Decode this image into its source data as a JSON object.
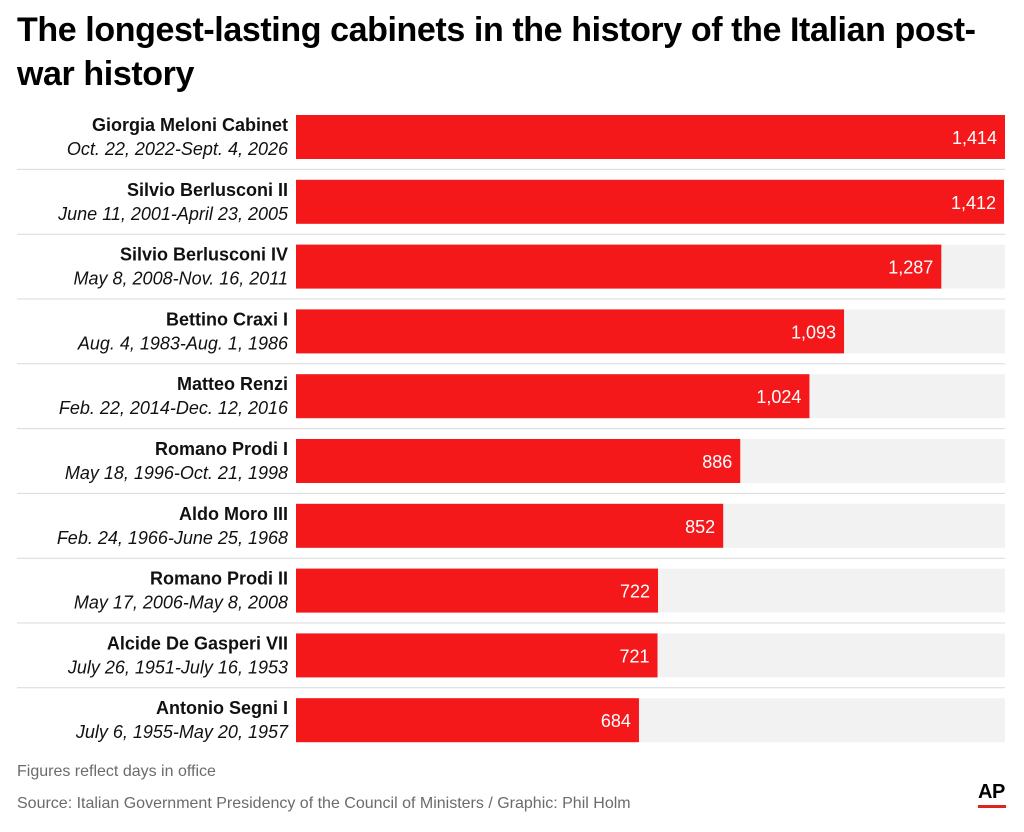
{
  "title": "The longest-lasting cabinets in the history of the Italian post-war history",
  "note": "Figures reflect days in office",
  "source": "Source: Italian Government Presidency of the Council of Ministers / Graphic: Phil Holm",
  "logo_text": "AP",
  "colors": {
    "bar": "#f5181b",
    "track": "#f2f2f2",
    "divider": "#d9d9d9",
    "logo_accent": "#e2231a"
  },
  "chart_data": {
    "type": "bar",
    "orientation": "horizontal",
    "value_unit": "days in office",
    "xlim": [
      0,
      1414
    ],
    "grid": false,
    "legend": "none",
    "categories": [
      "Giorgia Meloni Cabinet",
      "Silvio Berlusconi II",
      "Silvio Berlusconi IV",
      "Bettino Craxi I",
      "Matteo Renzi",
      "Romano Prodi I",
      "Aldo Moro III",
      "Romano Prodi II",
      "Alcide De Gasperi VII",
      "Antonio Segni I"
    ],
    "subtitles": [
      "Oct. 22, 2022-Sept. 4, 2026",
      "June 11, 2001-April 23, 2005",
      "May 8, 2008-Nov. 16, 2011",
      "Aug. 4, 1983-Aug. 1, 1986",
      "Feb. 22, 2014-Dec. 12, 2016",
      "May 18, 1996-Oct. 21, 1998",
      "Feb. 24, 1966-June 25, 1968",
      "May 17, 2006-May 8, 2008",
      "July 26, 1951-July 16, 1953",
      "July 6, 1955-May 20, 1957"
    ],
    "values": [
      1414,
      1412,
      1287,
      1093,
      1024,
      886,
      852,
      722,
      721,
      684
    ],
    "value_labels": [
      "1,414",
      "1,412",
      "1,287",
      "1,093",
      "1,024",
      "886",
      "852",
      "722",
      "721",
      "684"
    ]
  }
}
